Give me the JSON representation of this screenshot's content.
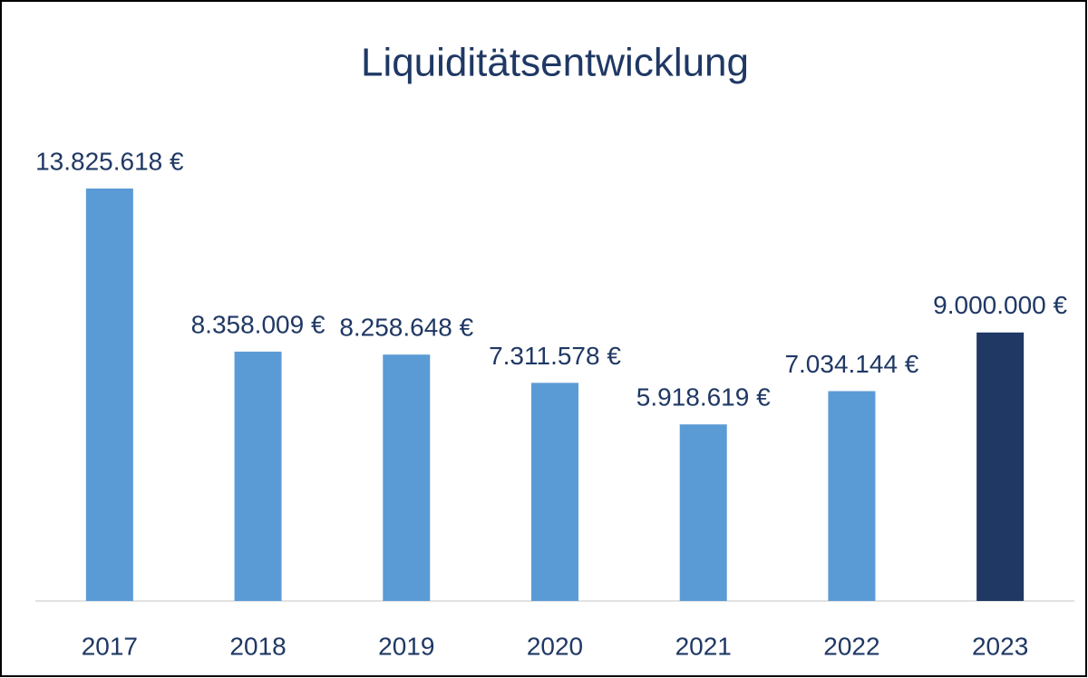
{
  "chart_data": {
    "type": "bar",
    "title": "Liquiditätsentwicklung",
    "categories": [
      "2017",
      "2018",
      "2019",
      "2020",
      "2021",
      "2022",
      "2023"
    ],
    "values": [
      13825618,
      8358009,
      8258648,
      7311578,
      5918619,
      7034144,
      9000000
    ],
    "value_labels": [
      "13.825.618 €",
      "8.358.009 €",
      "8.258.648 €",
      "7.311.578 €",
      "5.918.619 €",
      "7.034.144 €",
      "9.000.000 €"
    ],
    "colors": [
      "#5b9bd5",
      "#5b9bd5",
      "#5b9bd5",
      "#5b9bd5",
      "#5b9bd5",
      "#5b9bd5",
      "#203864"
    ]
  }
}
